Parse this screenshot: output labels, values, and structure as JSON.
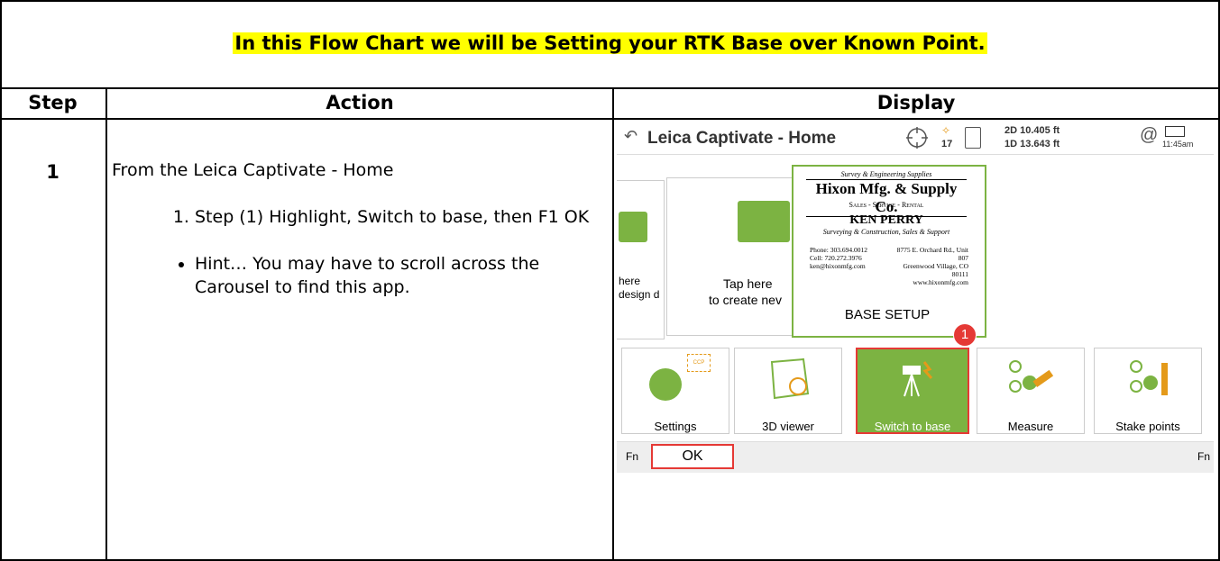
{
  "header": {
    "title": "In this Flow Chart we will be Setting your RTK Base over Known Point."
  },
  "table": {
    "columns": [
      "Step",
      "Action",
      "Display"
    ],
    "rows": [
      {
        "step": "1",
        "action": {
          "intro": "From the Leica Captivate - Home",
          "numbered": [
            "Step (1) Highlight, Switch to base, then F1 OK"
          ],
          "bullets": [
            "Hint… You may have to scroll across the Carousel to find this app."
          ]
        }
      }
    ]
  },
  "screenshot": {
    "title": "Leica Captivate - Home",
    "satellites": "17",
    "position": "2D 10.405 ft",
    "height": "1D 13.643 ft",
    "time": "11:45am",
    "carousel": {
      "left_card": [
        "here",
        "design d"
      ],
      "middle_card": [
        "Tap here",
        "to create nev"
      ],
      "ccp": "CCP"
    },
    "business_card": {
      "tagline": "Survey & Engineering Supplies",
      "company": "Hixon Mfg. & Supply Co.",
      "services": "Sales - Service - Rental",
      "name": "KEN PERRY",
      "role": "Surveying & Construction, Sales & Support",
      "phone": "Phone: 303.694.0012",
      "cell": "Cell: 720.272.3976",
      "email": "ken@hixonmfg.com",
      "address": "8775 E. Orchard Rd., Unit 807",
      "city": "Greenwood Village, CO 80111",
      "web": "www.hixonmfg.com"
    },
    "card_label": "BASE SETUP",
    "callout": "1",
    "tiles": [
      "Settings",
      "3D viewer",
      "Switch to base",
      "Measure",
      "Stake points"
    ],
    "softkeys": {
      "left": "Fn",
      "ok": "OK",
      "right": "Fn"
    }
  }
}
